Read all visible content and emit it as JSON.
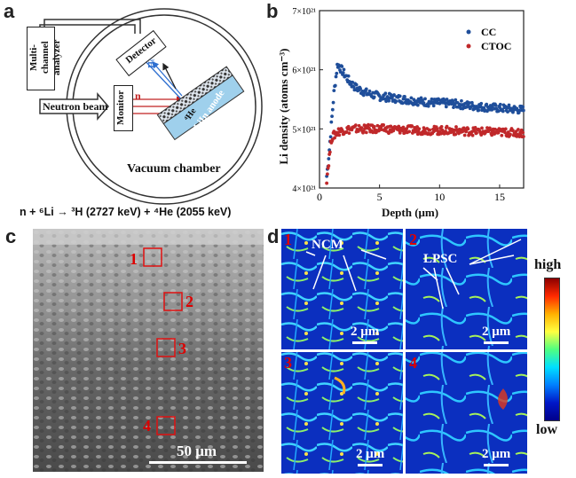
{
  "panels": {
    "a": "a",
    "b": "b",
    "c": "c",
    "d": "d"
  },
  "schematic": {
    "analyzer_label": "Multi-channel analyzer",
    "detector_label": "Detector",
    "monitor_label": "Monitor",
    "neutron_label": "Neutron beam",
    "anode_label": "LiIn anode",
    "chamber_label": "Vacuum chamber",
    "n_label": "n",
    "h3_label": "³H",
    "he4_label": "⁴He",
    "reaction": "n + ⁶Li → ³H (2727 keV) + ⁴He (2055 keV)"
  },
  "chart_data": {
    "type": "scatter",
    "xlabel": "Depth (μm)",
    "ylabel": "Li density (atoms cm⁻³)",
    "xlim": [
      0,
      17
    ],
    "ylim": [
      4e+21,
      7e+21
    ],
    "x_ticks": [
      "0",
      "5",
      "10",
      "15"
    ],
    "y_ticks": [
      "4×10²¹",
      "5×10²¹",
      "6×10²¹",
      "7×10²¹"
    ],
    "legend_position": "top-right",
    "series": [
      {
        "name": "CC",
        "color": "#1f4e9a",
        "profile": [
          [
            0.6,
            4.2
          ],
          [
            0.8,
            4.6
          ],
          [
            1.0,
            5.1
          ],
          [
            1.2,
            5.6
          ],
          [
            1.5,
            6.1
          ],
          [
            2.0,
            5.95
          ],
          [
            2.5,
            5.8
          ],
          [
            3.0,
            5.7
          ],
          [
            4.0,
            5.6
          ],
          [
            5.0,
            5.55
          ],
          [
            7.0,
            5.5
          ],
          [
            9.0,
            5.45
          ],
          [
            11.0,
            5.43
          ],
          [
            13.0,
            5.38
          ],
          [
            15.0,
            5.35
          ],
          [
            17.0,
            5.32
          ]
        ]
      },
      {
        "name": "CTOC",
        "color": "#c0282a",
        "profile": [
          [
            0.6,
            4.15
          ],
          [
            0.8,
            4.5
          ],
          [
            1.0,
            4.85
          ],
          [
            1.5,
            4.95
          ],
          [
            2.0,
            4.98
          ],
          [
            3.0,
            5.0
          ],
          [
            5.0,
            5.0
          ],
          [
            8.0,
            4.98
          ],
          [
            11.0,
            4.97
          ],
          [
            14.0,
            4.95
          ],
          [
            17.0,
            4.93
          ]
        ]
      }
    ]
  },
  "sem": {
    "scale_label": "50 μm",
    "regions": [
      "1",
      "2",
      "3",
      "4"
    ]
  },
  "maps": {
    "labels_top": [
      "NCM",
      "LPSC"
    ],
    "numbers": [
      "1",
      "2",
      "3",
      "4"
    ],
    "scale_label": "2 μm",
    "colorbar_high": "high",
    "colorbar_low": "low"
  }
}
